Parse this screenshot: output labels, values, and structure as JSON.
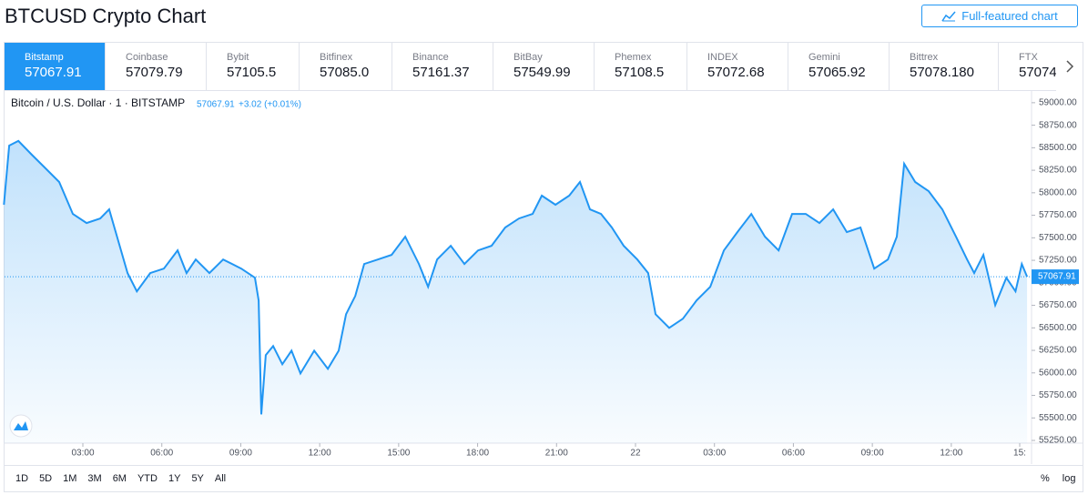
{
  "header": {
    "title": "BTCUSD Crypto Chart",
    "button": "Full-featured chart"
  },
  "tabs": [
    {
      "name": "Bitstamp",
      "price": "57067.91"
    },
    {
      "name": "Coinbase",
      "price": "57079.79"
    },
    {
      "name": "Bybit",
      "price": "57105.5"
    },
    {
      "name": "Bitfinex",
      "price": "57085.0"
    },
    {
      "name": "Binance",
      "price": "57161.37"
    },
    {
      "name": "BitBay",
      "price": "57549.99"
    },
    {
      "name": "Phemex",
      "price": "57108.5"
    },
    {
      "name": "INDEX",
      "price": "57072.68"
    },
    {
      "name": "Gemini",
      "price": "57065.92"
    },
    {
      "name": "Bittrex",
      "price": "57078.180"
    },
    {
      "name": "FTX",
      "price": "57074"
    }
  ],
  "chart_data": {
    "type": "area",
    "legend": "Bitcoin / U.S. Dollar · 1 · BITSTAMP",
    "last_price": 57067.91,
    "change": "+3.02 (+0.01%)",
    "color": "#2196f3",
    "x": [
      0,
      0.2,
      0.55,
      1.06,
      1.58,
      2.1,
      2.62,
      3.14,
      3.66,
      4.0,
      4.35,
      4.7,
      5.05,
      5.56,
      6.08,
      6.6,
      6.94,
      7.29,
      7.81,
      8.33,
      9.02,
      9.54,
      9.68,
      9.78,
      9.95,
      10.23,
      10.58,
      10.93,
      11.27,
      11.79,
      12.31,
      12.72,
      13.0,
      13.35,
      13.69,
      14.21,
      14.73,
      15.25,
      15.77,
      16.12,
      16.46,
      16.98,
      17.5,
      18.02,
      18.53,
      19.05,
      19.57,
      20.09,
      20.44,
      20.96,
      21.48,
      21.89,
      22.27,
      22.69,
      23.1,
      23.55,
      24.07,
      24.48,
      24.76,
      25.28,
      25.8,
      26.32,
      26.84,
      27.36,
      27.87,
      28.4,
      28.92,
      29.44,
      29.95,
      30.47,
      30.99,
      31.51,
      32.03,
      32.55,
      33.07,
      33.59,
      33.93,
      34.21,
      34.63,
      35.14,
      35.66,
      36.18,
      36.6,
      36.87,
      37.22,
      37.67,
      38.09,
      38.44,
      38.68,
      38.88
    ],
    "values": [
      57867,
      58524,
      58575,
      58423,
      58271,
      58120,
      57765,
      57664,
      57715,
      57816,
      57462,
      57108,
      56905,
      57108,
      57158,
      57360,
      57108,
      57259,
      57108,
      57259,
      57158,
      57057,
      56804,
      55539,
      56197,
      56298,
      56096,
      56247,
      55994,
      56247,
      56045,
      56247,
      56652,
      56854,
      57209,
      57259,
      57310,
      57512,
      57209,
      56956,
      57259,
      57411,
      57209,
      57360,
      57411,
      57614,
      57715,
      57765,
      57968,
      57867,
      57968,
      58120,
      57816,
      57765,
      57614,
      57411,
      57259,
      57108,
      56652,
      56500,
      56601,
      56804,
      56956,
      57360,
      57563,
      57765,
      57512,
      57360,
      57765,
      57765,
      57664,
      57816,
      57563,
      57614,
      57158,
      57259,
      57512,
      58322,
      58120,
      58018,
      57816,
      57512,
      57259,
      57108,
      57310,
      56753,
      57057,
      56905,
      57209,
      57067.91
    ],
    "xlim": [
      0,
      39.05
    ],
    "ylim": [
      55220,
      59130
    ],
    "xticks": [
      {
        "value": 3,
        "label": "03:00"
      },
      {
        "value": 6,
        "label": "06:00"
      },
      {
        "value": 9,
        "label": "09:00"
      },
      {
        "value": 12,
        "label": "12:00"
      },
      {
        "value": 15,
        "label": "15:00"
      },
      {
        "value": 18,
        "label": "18:00"
      },
      {
        "value": 21,
        "label": "21:00"
      },
      {
        "value": 24,
        "label": "22"
      },
      {
        "value": 27,
        "label": "03:00"
      },
      {
        "value": 30,
        "label": "06:00"
      },
      {
        "value": 33,
        "label": "09:00"
      },
      {
        "value": 36,
        "label": "12:00"
      },
      {
        "value": 38.6,
        "label": "15:"
      }
    ],
    "yticks": [
      {
        "value": 55250,
        "label": "55250.00"
      },
      {
        "value": 55500,
        "label": "55500.00"
      },
      {
        "value": 55750,
        "label": "55750.00"
      },
      {
        "value": 56000,
        "label": "56000.00"
      },
      {
        "value": 56250,
        "label": "56250.00"
      },
      {
        "value": 56500,
        "label": "56500.00"
      },
      {
        "value": 56750,
        "label": "56750.00"
      },
      {
        "value": 57000,
        "label": "57000.00"
      },
      {
        "value": 57250,
        "label": "57250.00"
      },
      {
        "value": 57500,
        "label": "57500.00"
      },
      {
        "value": 57750,
        "label": "57750.00"
      },
      {
        "value": 58000,
        "label": "58000.00"
      },
      {
        "value": 58250,
        "label": "58250.00"
      },
      {
        "value": 58500,
        "label": "58500.00"
      },
      {
        "value": 58750,
        "label": "58750.00"
      },
      {
        "value": 59000,
        "label": "59000.00"
      }
    ]
  },
  "ranges": [
    "1D",
    "5D",
    "1M",
    "3M",
    "6M",
    "YTD",
    "1Y",
    "5Y",
    "All"
  ],
  "scale_buttons": [
    "%",
    "log"
  ]
}
